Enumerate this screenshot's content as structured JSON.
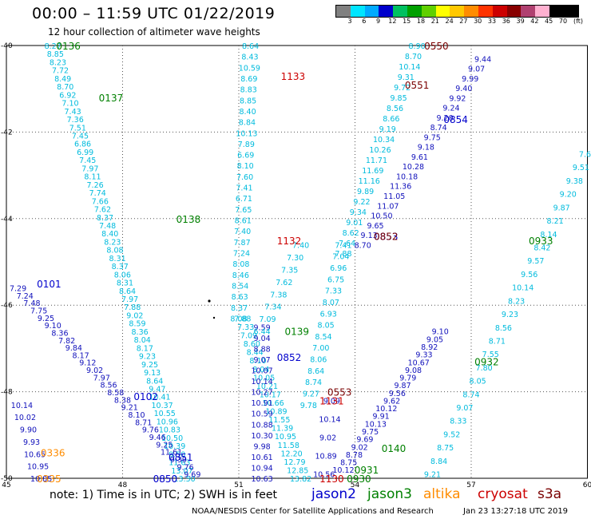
{
  "header": {
    "title": "00:00 – 11:59 UTC 01/22/2019",
    "subtitle": "12 hour collection of altimeter wave heights"
  },
  "colorbar": {
    "labels": [
      "3",
      "6",
      "9",
      "12",
      "15",
      "18",
      "21",
      "24",
      "27",
      "30",
      "33",
      "36",
      "39",
      "42",
      "45",
      "70"
    ],
    "unit": "(ft)",
    "colors": [
      "#808080",
      "#00e5ff",
      "#00aaff",
      "#0000cc",
      "#00c060",
      "#00a000",
      "#60d000",
      "#ffff00",
      "#ffc800",
      "#ff8c00",
      "#ff3300",
      "#cc0000",
      "#880000",
      "#b04070",
      "#ffb0d0",
      "#000000",
      "#000000"
    ]
  },
  "axes": {
    "lon_labels": [
      "45",
      "48",
      "51",
      "54",
      "57",
      "60"
    ],
    "lat_labels": [
      "-40",
      "-42",
      "-44",
      "-46",
      "-48",
      "-50"
    ]
  },
  "colors": {
    "jason2": "#0000cc",
    "jason3": "#008000",
    "altika": "#ff8c00",
    "cryosat": "#cc0000",
    "s3a": "#7a0000",
    "cyan": "#00bbdd",
    "blue": "#1010bb"
  },
  "footer": {
    "note": "note:  1) Time is in UTC;  2) SWH is in feet",
    "legend": [
      "jason2",
      "jason3",
      "altika",
      "cryosat",
      "s3a"
    ],
    "credits": "NOAA/NESDIS Center for Satellite Applications and Research",
    "timestamp": "Jan 23 13:27:18 UTC 2019"
  },
  "time_labels": [
    {
      "t": "0136",
      "sat": "jason3",
      "lon": 46.6,
      "lat": -40.0
    },
    {
      "t": "0137",
      "sat": "jason3",
      "lon": 47.7,
      "lat": -41.2
    },
    {
      "t": "0138",
      "sat": "jason3",
      "lon": 49.7,
      "lat": -44.0
    },
    {
      "t": "0101",
      "sat": "jason2",
      "lon": 46.1,
      "lat": -45.5
    },
    {
      "t": "0102",
      "sat": "jason2",
      "lon": 48.6,
      "lat": -48.1
    },
    {
      "t": "0336",
      "sat": "altika",
      "lon": 46.2,
      "lat": -49.4
    },
    {
      "t": "0335",
      "sat": "altika",
      "lon": 46.1,
      "lat": -50.0
    },
    {
      "t": "0851",
      "sat": "jason2",
      "lon": 49.5,
      "lat": -49.5
    },
    {
      "t": "0850",
      "sat": "jason2",
      "lon": 49.1,
      "lat": -50.0
    },
    {
      "t": "1133",
      "sat": "cryosat",
      "lon": 52.4,
      "lat": -40.7
    },
    {
      "t": "1132",
      "sat": "cryosat",
      "lon": 52.3,
      "lat": -44.5
    },
    {
      "t": "0139",
      "sat": "jason3",
      "lon": 52.5,
      "lat": -46.6
    },
    {
      "t": "0852",
      "sat": "jason2",
      "lon": 52.3,
      "lat": -47.2
    },
    {
      "t": "0553",
      "sat": "s3a",
      "lon": 53.6,
      "lat": -48.0
    },
    {
      "t": "1131",
      "sat": "cryosat",
      "lon": 53.4,
      "lat": -48.2
    },
    {
      "t": "0550",
      "sat": "s3a",
      "lon": 56.1,
      "lat": -40.0
    },
    {
      "t": "0551",
      "sat": "s3a",
      "lon": 55.6,
      "lat": -40.9
    },
    {
      "t": "0854",
      "sat": "jason2",
      "lon": 56.6,
      "lat": -41.7
    },
    {
      "t": "0853",
      "sat": "jason2",
      "lon": 54.8,
      "lat": -44.4
    },
    {
      "t": "0852",
      "sat": "s3a",
      "lon": 54.8,
      "lat": -44.4
    },
    {
      "t": "0933",
      "sat": "jason3",
      "lon": 58.8,
      "lat": -44.5
    },
    {
      "t": "0932",
      "sat": "jason3",
      "lon": 57.4,
      "lat": -47.3
    },
    {
      "t": "0140",
      "sat": "jason3",
      "lon": 55.0,
      "lat": -49.3
    },
    {
      "t": "0931",
      "sat": "jason3",
      "lon": 54.3,
      "lat": -49.8
    },
    {
      "t": "0930",
      "sat": "jason3",
      "lon": 54.1,
      "lat": -50.0
    },
    {
      "t": "1130",
      "sat": "cryosat",
      "lon": 53.4,
      "lat": -50.0
    }
  ],
  "tracks": [
    {
      "color": "cyan",
      "start": [
        46.2,
        -40.0
      ],
      "end": [
        49.6,
        -50.0
      ],
      "values": [
        "8.27",
        "8.85",
        "8.23",
        "7.72",
        "8.49",
        "8.70",
        "6.92",
        "7.10",
        "7.43",
        "7.36",
        "7.51",
        "7.45",
        "6.86",
        "6.99",
        "7.45",
        "7.97",
        "8.11",
        "7.26",
        "7.74",
        "7.66",
        "7.62",
        "8.37",
        "7.48",
        "8.40",
        "8.23",
        "8.08",
        "8.31",
        "8.37",
        "8.06",
        "8.31",
        "8.64",
        "7.97",
        "7.88",
        "9.02",
        "8.59",
        "8.36",
        "8.04",
        "8.17",
        "9.23",
        "9.25",
        "9.13",
        "8.64",
        "9.47",
        "10.41",
        "10.37",
        "10.55",
        "10.96",
        "10.83",
        "10.50",
        "10.39",
        "9.50",
        "11.63",
        "13.07",
        "13.50"
      ]
    },
    {
      "color": "blue",
      "start": [
        45.3,
        -45.6
      ],
      "end": [
        49.8,
        -49.9
      ],
      "values": [
        "7.29",
        "7.24",
        "7.48",
        "7.75",
        "9.25",
        "9.10",
        "8.36",
        "7.82",
        "9.84",
        "8.17",
        "9.12",
        "9.02",
        "7.97",
        "8.56",
        "8.58",
        "8.38",
        "9.21",
        "8.10",
        "8.71",
        "9.76",
        "9.46",
        "9.25",
        "11.61",
        "9.39",
        "9.76",
        "9.69"
      ]
    },
    {
      "color": "blue",
      "start": [
        45.4,
        -48.3
      ],
      "end": [
        45.9,
        -50.0
      ],
      "values": [
        "10.14",
        "10.02",
        "9.90",
        "9.93",
        "10.65",
        "10.95",
        "10.85"
      ]
    },
    {
      "color": "cyan",
      "start": [
        51.3,
        -40.0
      ],
      "end": [
        51.0,
        -46.3
      ],
      "values": [
        "8.64",
        "8.43",
        "10.59",
        "8.69",
        "8.83",
        "8.85",
        "8.40",
        "8.84",
        "10.13",
        "7.89",
        "6.69",
        "8.10",
        "7.60",
        "7.41",
        "6.71",
        "7.65",
        "8.61",
        "7.40",
        "7.87",
        "7.24",
        "8.08",
        "8.46",
        "8.54",
        "8.63",
        "8.37",
        "8.08"
      ]
    },
    {
      "color": "cyan",
      "start": [
        51.1,
        -46.3
      ],
      "end": [
        52.6,
        -50.0
      ],
      "values": [
        "7.88",
        "7.33",
        "7.09",
        "8.60",
        "8.44",
        "8.10",
        "8.04",
        "10.05",
        "10.21",
        "10.17",
        "10.66",
        "10.89",
        "11.55",
        "11.39",
        "10.95",
        "11.58",
        "12.20",
        "12.79",
        "12.85",
        "13.82"
      ]
    },
    {
      "color": "blue",
      "start": [
        51.6,
        -46.5
      ],
      "end": [
        51.6,
        -50.0
      ],
      "values": [
        "9.59",
        "9.04",
        "8.88",
        "9.07",
        "10.07",
        "10.14",
        "10.27",
        "10.91",
        "10.59",
        "10.88",
        "10.30",
        "9.98",
        "10.61",
        "10.94",
        "10.63"
      ]
    },
    {
      "color": "cyan",
      "start": [
        52.6,
        -44.6
      ],
      "end": [
        51.6,
        -46.6
      ],
      "values": [
        "7.40",
        "7.30",
        "7.35",
        "7.62",
        "7.38",
        "7.34",
        "7.09",
        "6.44"
      ]
    },
    {
      "color": "cyan",
      "start": [
        53.7,
        -44.6
      ],
      "end": [
        52.8,
        -48.3
      ],
      "values": [
        "7.41",
        "7.04",
        "6.96",
        "6.75",
        "7.33",
        "8.07",
        "6.93",
        "8.05",
        "8.54",
        "7.00",
        "8.06",
        "8.64",
        "8.74",
        "9.27",
        "9.78"
      ]
    },
    {
      "color": "cyan",
      "start": [
        55.6,
        -40.0
      ],
      "end": [
        53.7,
        -44.8
      ],
      "values": [
        "8.90",
        "8.70",
        "10.14",
        "9.31",
        "9.72",
        "9.85",
        "8.56",
        "8.66",
        "9.19",
        "10.34",
        "10.26",
        "11.71",
        "11.69",
        "11.16",
        "9.89",
        "9.22",
        "9.34",
        "9.01",
        "8.62",
        "7.64",
        "7.88"
      ]
    },
    {
      "color": "blue",
      "start": [
        57.3,
        -40.3
      ],
      "end": [
        54.2,
        -44.6
      ],
      "values": [
        "9.44",
        "9.07",
        "9.99",
        "9.40",
        "9.92",
        "9.24",
        "9.20",
        "8.74",
        "9.75",
        "9.18",
        "9.61",
        "10.28",
        "10.18",
        "11.36",
        "11.05",
        "11.07",
        "10.50",
        "9.65",
        "9.13",
        "8.70"
      ]
    },
    {
      "color": "cyan",
      "start": [
        60.0,
        -42.5
      ],
      "end": [
        56.0,
        -49.9
      ],
      "values": [
        "7.61",
        "9.51",
        "9.38",
        "9.20",
        "9.87",
        "8.21",
        "8.14",
        "8.42",
        "9.57",
        "9.56",
        "10.14",
        "8.23",
        "9.23",
        "8.56",
        "8.71",
        "7.55",
        "7.80",
        "8.05",
        "8.74",
        "9.07",
        "8.33",
        "9.52",
        "8.75",
        "8.84",
        "9.21"
      ]
    },
    {
      "color": "blue",
      "start": [
        56.2,
        -46.6
      ],
      "end": [
        53.7,
        -49.8
      ],
      "values": [
        "9.10",
        "9.05",
        "8.92",
        "9.33",
        "10.67",
        "9.08",
        "9.79",
        "9.87",
        "9.56",
        "9.62",
        "10.12",
        "9.91",
        "10.13",
        "9.75",
        "9.69",
        "9.02",
        "8.78",
        "8.75",
        "10.12"
      ]
    },
    {
      "color": "blue",
      "start": [
        53.4,
        -48.2
      ],
      "end": [
        53.2,
        -49.9
      ],
      "values": [
        "9.09",
        "10.14",
        "9.02",
        "10.89",
        "10.56"
      ]
    }
  ]
}
